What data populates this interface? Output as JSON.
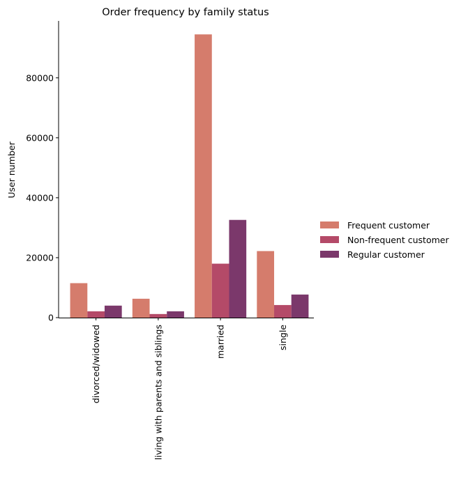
{
  "chart_data": {
    "type": "bar",
    "title": "Order frequency by family status",
    "xlabel": "",
    "ylabel": "User number",
    "categories": [
      "divorced/widowed",
      "living with parents and siblings",
      "married",
      "single"
    ],
    "series": [
      {
        "name": "Frequent customer",
        "color": "#d57c6c",
        "values": [
          11500,
          6300,
          94500,
          22200
        ]
      },
      {
        "name": "Non-frequent customer",
        "color": "#b44a68",
        "values": [
          2100,
          1200,
          18000,
          4200
        ]
      },
      {
        "name": "Regular customer",
        "color": "#7b386b",
        "values": [
          4000,
          2100,
          32600,
          7700
        ]
      }
    ],
    "yticks": [
      0,
      20000,
      40000,
      60000,
      80000
    ],
    "ylim": [
      0,
      99000
    ],
    "legend": "right",
    "grid": false
  }
}
